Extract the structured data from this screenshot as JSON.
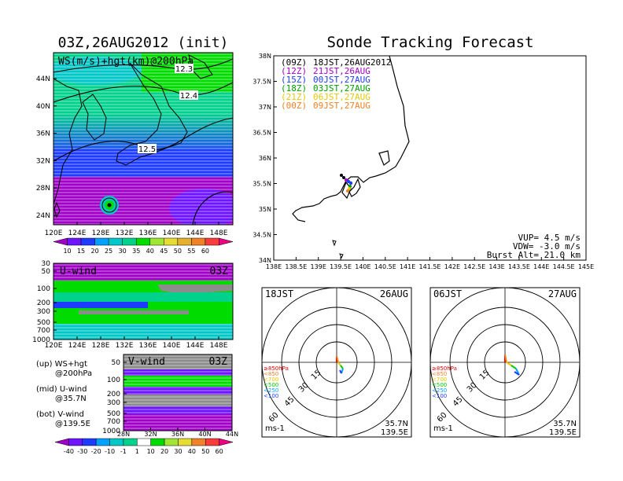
{
  "left_map": {
    "title": "03Z,26AUG2012 (init)",
    "field_label": "WS(m/s)+hgt(km)@200hPa",
    "contour_labels": [
      "12.3",
      "12.4",
      "12.5"
    ],
    "lat_ticks": [
      "44N",
      "40N",
      "36N",
      "32N",
      "28N",
      "24N"
    ],
    "lon_ticks": [
      "120E",
      "124E",
      "128E",
      "132E",
      "136E",
      "140E",
      "144E",
      "148E"
    ],
    "colorbar_ticks": [
      "10",
      "15",
      "20",
      "25",
      "30",
      "35",
      "40",
      "45",
      "50",
      "55",
      "60"
    ],
    "colorbar_colors": [
      "#a000c8",
      "#6e14ff",
      "#1e3cff",
      "#00a0ff",
      "#00c8c8",
      "#00d28c",
      "#00dc00",
      "#a0e632",
      "#e6dc32",
      "#e6af2d",
      "#f08228",
      "#fa3c3c",
      "#f00082"
    ]
  },
  "u_section": {
    "label": "U-wind",
    "time": "03Z",
    "p_ticks": [
      "30",
      "50",
      "100",
      "200",
      "300",
      "500",
      "700",
      "1000"
    ],
    "lon_ticks": [
      "120E",
      "124E",
      "128E",
      "132E",
      "136E",
      "140E",
      "144E",
      "148E"
    ]
  },
  "v_section": {
    "label": "V-wind",
    "time": "03Z",
    "p_ticks": [
      "50",
      "100",
      "200",
      "300",
      "500",
      "700",
      "1000"
    ],
    "lat_ticks": [
      "28N",
      "32N",
      "36N",
      "40N",
      "44N"
    ]
  },
  "legend_notes": [
    {
      "line1": "(up) WS+hgt",
      "line2": "@200hPa"
    },
    {
      "line1": "(mid) U-wind",
      "line2": "@35.7N"
    },
    {
      "line1": "(bot) V-wind",
      "line2": "@139.5E"
    }
  ],
  "bottom_colorbar": {
    "ticks": [
      "-40",
      "-30",
      "-20",
      "-10",
      "-1",
      "1",
      "10",
      "20",
      "30",
      "40",
      "50",
      "60"
    ],
    "colors": [
      "#a000c8",
      "#6e14ff",
      "#1e3cff",
      "#00a0ff",
      "#00c8c8",
      "#00d28c",
      "#ffffff",
      "#00dc00",
      "#a0e632",
      "#e6dc32",
      "#f08228",
      "#fa3c3c",
      "#f00082"
    ]
  },
  "tracking": {
    "title": "Sonde Tracking Forecast",
    "lat_ticks": [
      "38N",
      "37.5N",
      "37N",
      "36.5N",
      "36N",
      "35.5N",
      "35N",
      "34.5N",
      "34N"
    ],
    "lon_ticks": [
      "138E",
      "138.5E",
      "139E",
      "139.5E",
      "140E",
      "140.5E",
      "141E",
      "141.5E",
      "142E",
      "142.5E",
      "143E",
      "143.5E",
      "144E",
      "144.5E",
      "145E"
    ],
    "launches": [
      {
        "run": "(09Z)",
        "time": "18JST,26AUG2012",
        "color": "#000000"
      },
      {
        "run": "(12Z)",
        "time": "21JST,26AUG",
        "color": "#a000c8"
      },
      {
        "run": "(15Z)",
        "time": "00JST,27AUG",
        "color": "#1e3cff"
      },
      {
        "run": "(18Z)",
        "time": "03JST,27AUG",
        "color": "#00a000"
      },
      {
        "run": "(21Z)",
        "time": "06JST,27AUG",
        "color": "#e6c800"
      },
      {
        "run": "(00Z)",
        "time": "09JST,27AUG",
        "color": "#f08228"
      }
    ],
    "params": [
      "VUP= 4.5 m/s",
      "VDW= -3.0 m/s",
      "Burst Alt= 21.0 km"
    ]
  },
  "hodographs": [
    {
      "time": "18JST",
      "date": "26AUG",
      "location": "35.7N",
      "location2": "139.5E",
      "unit": "ms-1",
      "ring_labels": [
        "15",
        "30",
        "45",
        "60"
      ]
    },
    {
      "time": "06JST",
      "date": "27AUG",
      "location": "35.7N",
      "location2": "139.5E",
      "unit": "ms-1",
      "ring_labels": [
        "15",
        "30",
        "45",
        "60"
      ]
    }
  ],
  "hodo_levels": [
    {
      "label": "≥850hPa",
      "color": "#e60000"
    },
    {
      "label": "<850",
      "color": "#f08228"
    },
    {
      "label": "<700",
      "color": "#e6c800"
    },
    {
      "label": "<500",
      "color": "#00c800"
    },
    {
      "label": "<250",
      "color": "#00a0ff"
    },
    {
      "label": "<100",
      "color": "#1e3cff"
    }
  ]
}
